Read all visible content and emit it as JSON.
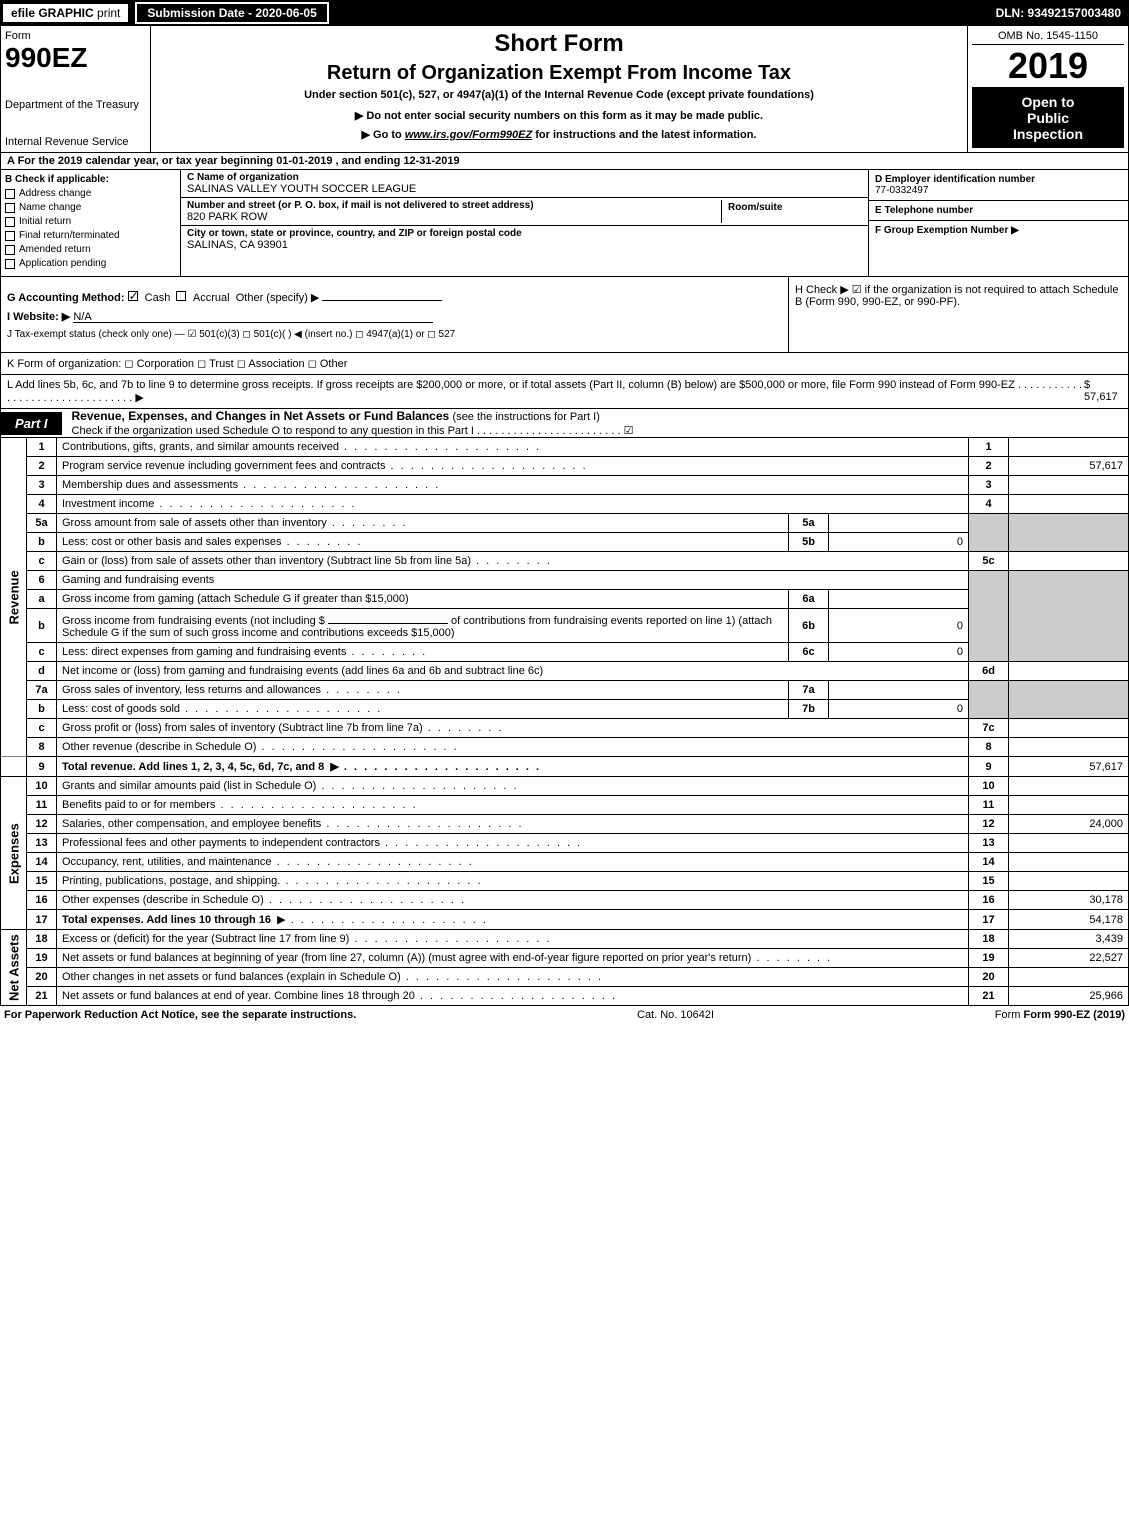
{
  "top": {
    "efile": "efile GRAPHIC",
    "print": "print",
    "submission_label": "Submission Date - 2020-06-05",
    "dln": "DLN: 93492157003480"
  },
  "header": {
    "form_label": "Form",
    "form_number": "990EZ",
    "dept": "Department of the Treasury",
    "irs": "Internal Revenue Service",
    "short_form": "Short Form",
    "return_title": "Return of Organization Exempt From Income Tax",
    "under_section": "Under section 501(c), 527, or 4947(a)(1) of the Internal Revenue Code (except private foundations)",
    "do_not_enter": "▶ Do not enter social security numbers on this form as it may be made public.",
    "goto_prefix": "▶ Go to ",
    "goto_link": "www.irs.gov/Form990EZ",
    "goto_suffix": " for instructions and the latest information.",
    "omb": "OMB No. 1545-1150",
    "year": "2019",
    "open1": "Open to",
    "open2": "Public",
    "open3": "Inspection"
  },
  "line_a": "A For the 2019 calendar year, or tax year beginning 01-01-2019 , and ending 12-31-2019",
  "box_b": {
    "label": "B Check if applicable:",
    "items": [
      "Address change",
      "Name change",
      "Initial return",
      "Final return/terminated",
      "Amended return",
      "Application pending"
    ]
  },
  "box_c": {
    "name_lbl": "C Name of organization",
    "name_val": "SALINAS VALLEY YOUTH SOCCER LEAGUE",
    "street_lbl": "Number and street (or P. O. box, if mail is not delivered to street address)",
    "street_val": "820 PARK ROW",
    "room_lbl": "Room/suite",
    "room_val": "",
    "city_lbl": "City or town, state or province, country, and ZIP or foreign postal code",
    "city_val": "SALINAS, CA  93901"
  },
  "box_right": {
    "d_lbl": "D Employer identification number",
    "d_val": "77-0332497",
    "e_lbl": "E Telephone number",
    "e_val": "",
    "f_lbl": "F Group Exemption Number  ▶",
    "f_val": ""
  },
  "g": {
    "label": "G Accounting Method:",
    "cash": "Cash",
    "accrual": "Accrual",
    "other": "Other (specify) ▶"
  },
  "h": "H  Check ▶ ☑ if the organization is not required to attach Schedule B (Form 990, 990-EZ, or 990-PF).",
  "i": {
    "label": "I Website: ▶",
    "val": "N/A"
  },
  "j": "J Tax-exempt status (check only one) — ☑ 501(c)(3)  ◻ 501(c)(  ) ◀ (insert no.)  ◻ 4947(a)(1) or  ◻ 527",
  "k": "K Form of organization:   ◻ Corporation   ◻ Trust   ◻ Association   ◻ Other",
  "l": {
    "text": "L Add lines 5b, 6c, and 7b to line 9 to determine gross receipts. If gross receipts are $200,000 or more, or if total assets (Part II, column (B) below) are $500,000 or more, file Form 990 instead of Form 990-EZ  . . . . . . . . . . . . . . . . . . . . . . . . . . . . . . . . ▶",
    "amount": "$ 57,617"
  },
  "part1": {
    "label": "Part I",
    "title": "Revenue, Expenses, and Changes in Net Assets or Fund Balances",
    "note": "(see the instructions for Part I)",
    "check_note": "Check if the organization used Schedule O to respond to any question in this Part I . . . . . . . . . . . . . . . . . . . . . . . . ☑"
  },
  "lines": {
    "l1": {
      "num": "1",
      "desc": "Contributions, gifts, grants, and similar amounts received",
      "col": "1",
      "val": ""
    },
    "l2": {
      "num": "2",
      "desc": "Program service revenue including government fees and contracts",
      "col": "2",
      "val": "57,617"
    },
    "l3": {
      "num": "3",
      "desc": "Membership dues and assessments",
      "col": "3",
      "val": ""
    },
    "l4": {
      "num": "4",
      "desc": "Investment income",
      "col": "4",
      "val": ""
    },
    "l5a": {
      "num": "5a",
      "desc": "Gross amount from sale of assets other than inventory",
      "sub": "5a",
      "subval": ""
    },
    "l5b": {
      "num": "b",
      "desc": "Less: cost or other basis and sales expenses",
      "sub": "5b",
      "subval": "0"
    },
    "l5c": {
      "num": "c",
      "desc": "Gain or (loss) from sale of assets other than inventory (Subtract line 5b from line 5a)",
      "col": "5c",
      "val": ""
    },
    "l6": {
      "num": "6",
      "desc": "Gaming and fundraising events"
    },
    "l6a": {
      "num": "a",
      "desc": "Gross income from gaming (attach Schedule G if greater than $15,000)",
      "sub": "6a",
      "subval": ""
    },
    "l6b": {
      "num": "b",
      "desc1": "Gross income from fundraising events (not including $",
      "desc2": "of contributions from fundraising events reported on line 1) (attach Schedule G if the sum of such gross income and contributions exceeds $15,000)",
      "sub": "6b",
      "subval": "0"
    },
    "l6c": {
      "num": "c",
      "desc": "Less: direct expenses from gaming and fundraising events",
      "sub": "6c",
      "subval": "0"
    },
    "l6d": {
      "num": "d",
      "desc": "Net income or (loss) from gaming and fundraising events (add lines 6a and 6b and subtract line 6c)",
      "col": "6d",
      "val": ""
    },
    "l7a": {
      "num": "7a",
      "desc": "Gross sales of inventory, less returns and allowances",
      "sub": "7a",
      "subval": ""
    },
    "l7b": {
      "num": "b",
      "desc": "Less: cost of goods sold",
      "sub": "7b",
      "subval": "0"
    },
    "l7c": {
      "num": "c",
      "desc": "Gross profit or (loss) from sales of inventory (Subtract line 7b from line 7a)",
      "col": "7c",
      "val": ""
    },
    "l8": {
      "num": "8",
      "desc": "Other revenue (describe in Schedule O)",
      "col": "8",
      "val": ""
    },
    "l9": {
      "num": "9",
      "desc": "Total revenue. Add lines 1, 2, 3, 4, 5c, 6d, 7c, and 8",
      "col": "9",
      "val": "57,617",
      "bold": true
    },
    "l10": {
      "num": "10",
      "desc": "Grants and similar amounts paid (list in Schedule O)",
      "col": "10",
      "val": ""
    },
    "l11": {
      "num": "11",
      "desc": "Benefits paid to or for members",
      "col": "11",
      "val": ""
    },
    "l12": {
      "num": "12",
      "desc": "Salaries, other compensation, and employee benefits",
      "col": "12",
      "val": "24,000"
    },
    "l13": {
      "num": "13",
      "desc": "Professional fees and other payments to independent contractors",
      "col": "13",
      "val": ""
    },
    "l14": {
      "num": "14",
      "desc": "Occupancy, rent, utilities, and maintenance",
      "col": "14",
      "val": ""
    },
    "l15": {
      "num": "15",
      "desc": "Printing, publications, postage, and shipping.",
      "col": "15",
      "val": ""
    },
    "l16": {
      "num": "16",
      "desc": "Other expenses (describe in Schedule O)",
      "col": "16",
      "val": "30,178"
    },
    "l17": {
      "num": "17",
      "desc": "Total expenses. Add lines 10 through 16",
      "col": "17",
      "val": "54,178",
      "bold": true
    },
    "l18": {
      "num": "18",
      "desc": "Excess or (deficit) for the year (Subtract line 17 from line 9)",
      "col": "18",
      "val": "3,439"
    },
    "l19": {
      "num": "19",
      "desc": "Net assets or fund balances at beginning of year (from line 27, column (A)) (must agree with end-of-year figure reported on prior year's return)",
      "col": "19",
      "val": "22,527"
    },
    "l20": {
      "num": "20",
      "desc": "Other changes in net assets or fund balances (explain in Schedule O)",
      "col": "20",
      "val": ""
    },
    "l21": {
      "num": "21",
      "desc": "Net assets or fund balances at end of year. Combine lines 18 through 20",
      "col": "21",
      "val": "25,966"
    }
  },
  "side_labels": {
    "revenue": "Revenue",
    "expenses": "Expenses",
    "netassets": "Net Assets"
  },
  "footer": {
    "left": "For Paperwork Reduction Act Notice, see the separate instructions.",
    "center": "Cat. No. 10642I",
    "right": "Form 990-EZ (2019)"
  },
  "colors": {
    "black": "#000000",
    "white": "#ffffff",
    "shade": "#cccccc"
  }
}
